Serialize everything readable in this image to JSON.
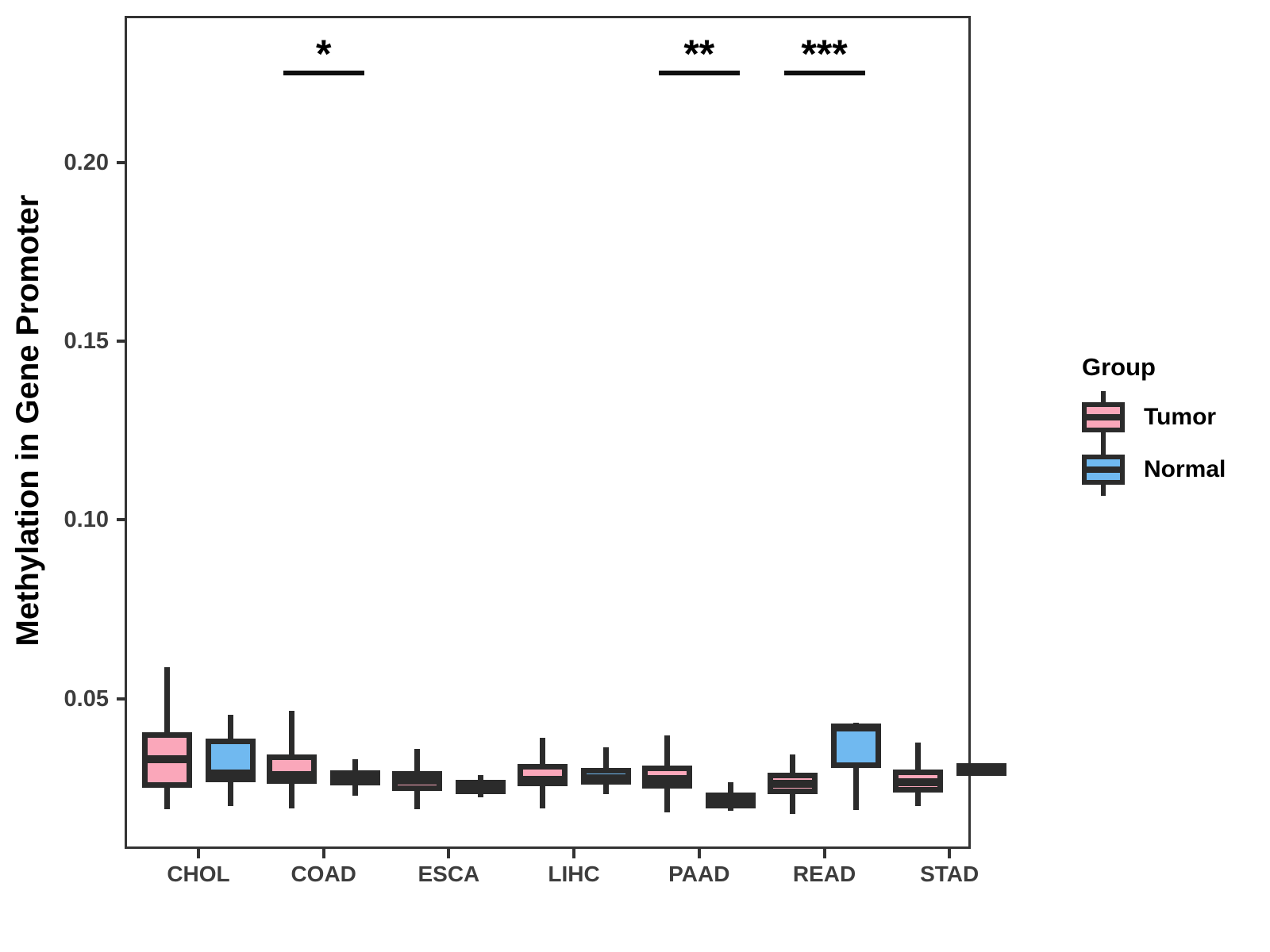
{
  "figure": {
    "y_axis_title": "Methylation in Gene Promoter",
    "legend": {
      "title": "Group",
      "items": [
        {
          "label": "Tumor",
          "color": "#FAA7BA"
        },
        {
          "label": "Normal",
          "color": "#70B9F0"
        }
      ]
    }
  },
  "chart_data": {
    "type": "boxplot",
    "orientation": "vertical",
    "title": "",
    "xlabel": "",
    "ylabel": "Methylation in Gene Promoter",
    "grid": false,
    "legend_position": "right",
    "categories": [
      "CHOL",
      "COAD",
      "ESCA",
      "LIHC",
      "PAAD",
      "READ",
      "STAD"
    ],
    "y_axis": {
      "ticks": [
        0.05,
        0.1,
        0.15,
        0.2
      ],
      "tick_labels": [
        "0.05",
        "0.10",
        "0.15",
        "0.20"
      ],
      "range": [
        0.008,
        0.241
      ]
    },
    "colors": {
      "tumor": "#FAA7BA",
      "normal": "#70B9F0",
      "line": "#2B2B2B"
    },
    "series": [
      {
        "name": "Tumor",
        "color": "#FAA7BA",
        "boxes": [
          {
            "category": "CHOL",
            "whisker_low": 0.019,
            "q1": 0.025,
            "median": 0.033,
            "q3": 0.0406,
            "whisker_high": 0.0588
          },
          {
            "category": "COAD",
            "whisker_low": 0.0193,
            "q1": 0.0262,
            "median": 0.0286,
            "q3": 0.0344,
            "whisker_high": 0.0466
          },
          {
            "category": "ESCA",
            "whisker_low": 0.0192,
            "q1": 0.0242,
            "median": 0.027,
            "q3": 0.0298,
            "whisker_high": 0.0359
          },
          {
            "category": "LIHC",
            "whisker_low": 0.0194,
            "q1": 0.0255,
            "median": 0.0273,
            "q3": 0.0318,
            "whisker_high": 0.039
          },
          {
            "category": "PAAD",
            "whisker_low": 0.0181,
            "q1": 0.0249,
            "median": 0.0276,
            "q3": 0.0313,
            "whisker_high": 0.0397
          },
          {
            "category": "READ",
            "whisker_low": 0.0177,
            "q1": 0.0232,
            "median": 0.0263,
            "q3": 0.0292,
            "whisker_high": 0.0344
          },
          {
            "category": "STAD",
            "whisker_low": 0.02,
            "q1": 0.0237,
            "median": 0.0267,
            "q3": 0.0301,
            "whisker_high": 0.0378
          }
        ]
      },
      {
        "name": "Normal",
        "color": "#70B9F0",
        "boxes": [
          {
            "category": "CHOL",
            "whisker_low": 0.02,
            "q1": 0.0266,
            "median": 0.029,
            "q3": 0.0388,
            "whisker_high": 0.0454
          },
          {
            "category": "COAD",
            "whisker_low": 0.0229,
            "q1": 0.0258,
            "median": 0.0279,
            "q3": 0.03,
            "whisker_high": 0.0331
          },
          {
            "category": "ESCA",
            "whisker_low": 0.0225,
            "q1": 0.0234,
            "median": 0.0252,
            "q3": 0.0273,
            "whisker_high": 0.0286
          },
          {
            "category": "LIHC",
            "whisker_low": 0.0233,
            "q1": 0.0259,
            "median": 0.0277,
            "q3": 0.0306,
            "whisker_high": 0.0365
          },
          {
            "category": "PAAD",
            "whisker_low": 0.0186,
            "q1": 0.0194,
            "median": 0.0214,
            "q3": 0.0237,
            "whisker_high": 0.0266
          },
          {
            "category": "READ",
            "whisker_low": 0.0188,
            "q1": 0.0306,
            "median": 0.0419,
            "q3": 0.0424,
            "whisker_high": 0.0433
          },
          {
            "category": "STAD",
            "whisker_low": 0.0297,
            "q1": 0.0303,
            "median": 0.0309,
            "q3": 0.0315,
            "whisker_high": 0.032
          }
        ]
      }
    ],
    "significance": [
      {
        "category": "COAD",
        "label": "*"
      },
      {
        "category": "PAAD",
        "label": "**"
      },
      {
        "category": "READ",
        "label": "***"
      }
    ]
  }
}
